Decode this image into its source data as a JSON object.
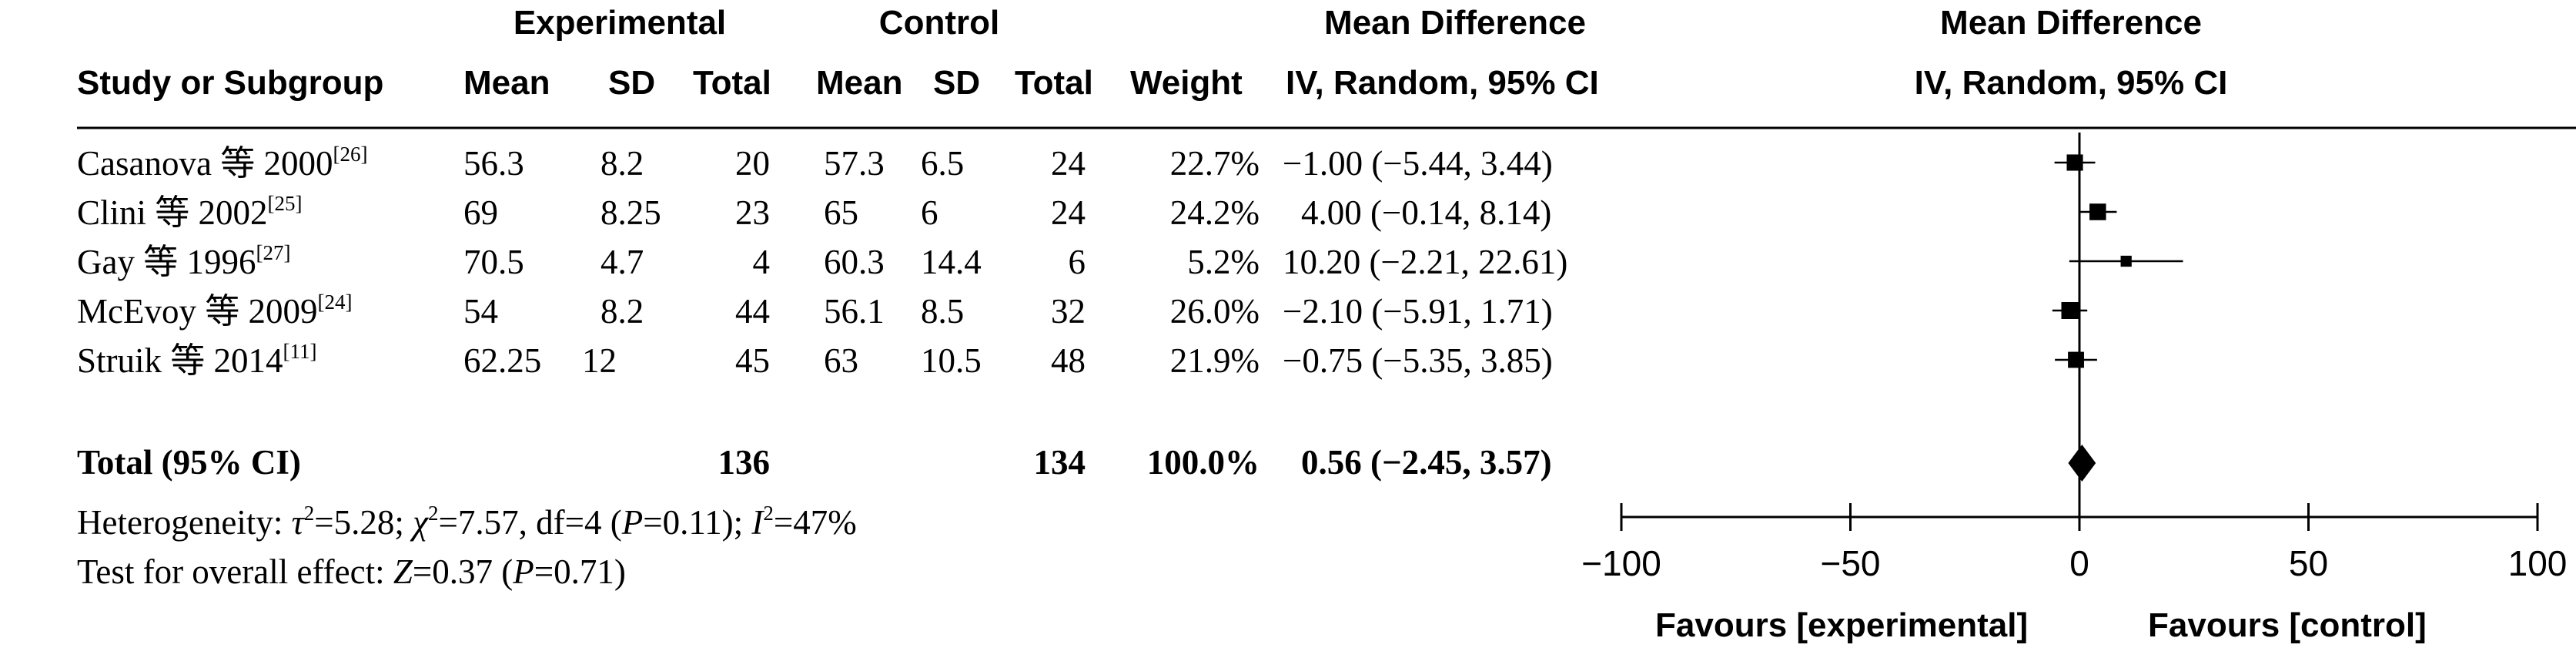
{
  "header": {
    "experimental_group": "Experimental",
    "control_group": "Control",
    "effect_title": "Mean Difference",
    "plot_title": "Mean Difference",
    "col_study": "Study or Subgroup",
    "col_exp_mean": "Mean",
    "col_exp_sd": "SD",
    "col_exp_total": "Total",
    "col_ctl_mean": "Mean",
    "col_ctl_sd": "SD",
    "col_ctl_total": "Total",
    "col_weight": "Weight",
    "col_effect": "IV, Random, 95% CI",
    "plot_subtitle": "IV, Random, 95% CI"
  },
  "studies": [
    {
      "name": "Casanova 等 2000",
      "ref": "[26]",
      "exp_mean": "56.3",
      "exp_sd": "8.2",
      "exp_total": "20",
      "ctl_mean": "57.3",
      "ctl_sd": "6.5",
      "ctl_total": "24",
      "weight": "22.7%",
      "ci_text": "−1.00 (−5.44, 3.44)"
    },
    {
      "name": "Clini 等 2002",
      "ref": "[25]",
      "exp_mean": "69",
      "exp_sd": "8.25",
      "exp_total": "23",
      "ctl_mean": "65",
      "ctl_sd": "6",
      "ctl_total": "24",
      "weight": "24.2%",
      "ci_text": "4.00 (−0.14, 8.14)"
    },
    {
      "name": "Gay 等 1996",
      "ref": "[27]",
      "exp_mean": "70.5",
      "exp_sd": "4.7",
      "exp_total": "4",
      "ctl_mean": "60.3",
      "ctl_sd": "14.4",
      "ctl_total": "6",
      "weight": "5.2%",
      "ci_text": "10.20 (−2.21, 22.61)"
    },
    {
      "name": "McEvoy 等 2009",
      "ref": "[24]",
      "exp_mean": "54",
      "exp_sd": "8.2",
      "exp_total": "44",
      "ctl_mean": "56.1",
      "ctl_sd": "8.5",
      "ctl_total": "32",
      "weight": "26.0%",
      "ci_text": "−2.10 (−5.91, 1.71)"
    },
    {
      "name": "Struik 等 2014",
      "ref": "[11]",
      "exp_mean": "62.25",
      "exp_sd": "12",
      "exp_total": "45",
      "ctl_mean": "63",
      "ctl_sd": "10.5",
      "ctl_total": "48",
      "weight": "21.9%",
      "ci_text": "−0.75 (−5.35, 3.85)"
    }
  ],
  "total": {
    "label": "Total (95% CI)",
    "exp_total": "136",
    "ctl_total": "134",
    "weight": "100.0%",
    "ci_text": "0.56 (−2.45, 3.57)"
  },
  "heterogeneity": {
    "prefix": "Heterogeneity: ",
    "tau_sym": "τ",
    "tau_val": "=5.28; ",
    "chi_sym": "χ",
    "chi_val": "=7.57, df=4 (",
    "p1_sym": "P",
    "p1_val": "=0.11); ",
    "i_sym": "I",
    "i_val": "=47%"
  },
  "overall": {
    "prefix": "Test for overall effect: ",
    "z_sym": "Z",
    "z_val": "=0.37 (",
    "p_sym": "P",
    "p_val": "=0.71)"
  },
  "favours_left": "Favours [experimental]",
  "favours_right": "Favours [control]",
  "chart_data": {
    "type": "forest",
    "x_range": [
      -100,
      100
    ],
    "x_ticks": [
      "−100",
      "−50",
      "0",
      "50",
      "100"
    ],
    "x_tick_values": [
      -100,
      -50,
      0,
      50,
      100
    ],
    "studies": [
      {
        "md": -1.0,
        "lo": -5.44,
        "hi": 3.44,
        "weight": 22.7
      },
      {
        "md": 4.0,
        "lo": -0.14,
        "hi": 8.14,
        "weight": 24.2
      },
      {
        "md": 10.2,
        "lo": -2.21,
        "hi": 22.61,
        "weight": 5.2
      },
      {
        "md": -2.1,
        "lo": -5.91,
        "hi": 1.71,
        "weight": 26.0
      },
      {
        "md": -0.75,
        "lo": -5.35,
        "hi": 3.85,
        "weight": 21.9
      }
    ],
    "pooled": {
      "md": 0.56,
      "lo": -2.45,
      "hi": 3.57
    }
  }
}
